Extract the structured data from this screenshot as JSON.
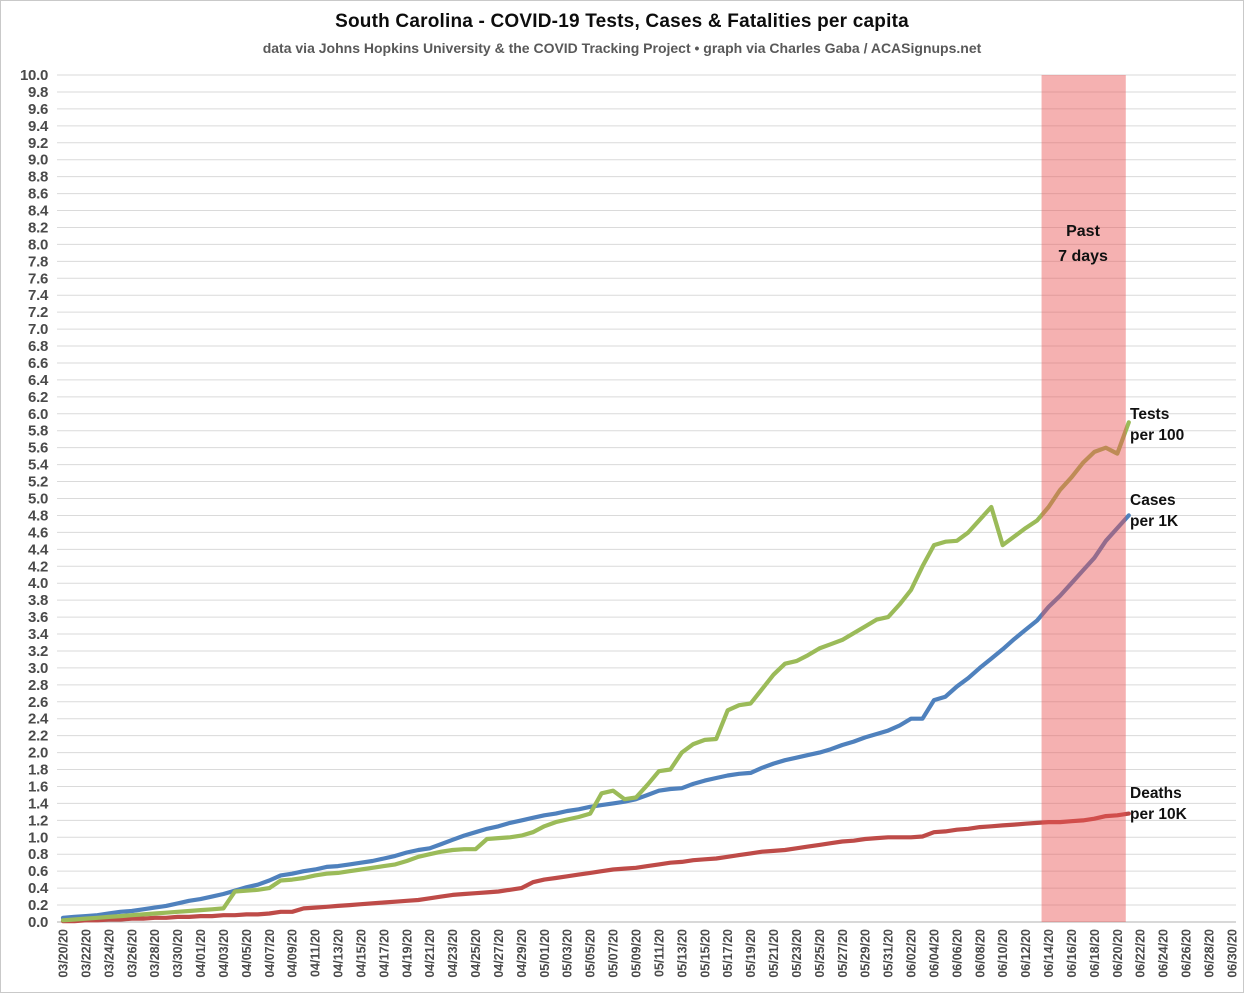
{
  "header": {
    "title": "South Carolina - COVID-19 Tests, Cases & Fatalities per capita",
    "subtitle": "data via Johns Hopkins University & the COVID Tracking Project • graph via Charles Gaba / ACASignups.net"
  },
  "annotations": {
    "past7_line1": "Past",
    "past7_line2": "7 days"
  },
  "series_labels": {
    "tests_line1": "Tests",
    "tests_line2": "per 100",
    "cases_line1": "Cases",
    "cases_line2": "per 1K",
    "deaths_line1": "Deaths",
    "deaths_line2": "per 10K"
  },
  "colors": {
    "tests": "#9bbb59",
    "cases": "#4f81bd",
    "deaths": "#be4b48",
    "band": "#e85151",
    "gridline": "#dadada",
    "axis_line": "#b0b0b0",
    "tick_text": "#4a4a4a"
  },
  "chart_data": {
    "type": "line",
    "title": "South Carolina - COVID-19 Tests, Cases & Fatalities per capita",
    "subtitle": "data via Johns Hopkins University & the COVID Tracking Project • graph via Charles Gaba / ACASignups.net",
    "xlabel": "",
    "ylabel": "",
    "ylim": [
      0,
      10
    ],
    "y_tick_step": 0.2,
    "grid": "horizontal",
    "legend_position": "right-of-line-endpoints",
    "x_start_date": "03/20/20",
    "x_end_date": "06/30/20",
    "x_tick_every_days": 2,
    "x_tick_labels": [
      "03/20/20",
      "03/22/20",
      "03/24/20",
      "03/26/20",
      "03/28/20",
      "03/30/20",
      "04/01/20",
      "04/03/20",
      "04/05/20",
      "04/07/20",
      "04/09/20",
      "04/11/20",
      "04/13/20",
      "04/15/20",
      "04/17/20",
      "04/19/20",
      "04/21/20",
      "04/23/20",
      "04/25/20",
      "04/27/20",
      "04/29/20",
      "05/01/20",
      "05/03/20",
      "05/05/20",
      "05/07/20",
      "05/09/20",
      "05/11/20",
      "05/13/20",
      "05/15/20",
      "05/17/20",
      "05/19/20",
      "05/21/20",
      "05/23/20",
      "05/25/20",
      "05/27/20",
      "05/29/20",
      "05/31/20",
      "06/02/20",
      "06/04/20",
      "06/06/20",
      "06/08/20",
      "06/10/20",
      "06/12/20",
      "06/14/20",
      "06/16/20",
      "06/18/20",
      "06/20/20",
      "06/22/20",
      "06/24/20",
      "06/26/20",
      "06/28/20",
      "06/30/20"
    ],
    "y_tick_labels": [
      "0.0",
      "0.2",
      "0.4",
      "0.6",
      "0.8",
      "1.0",
      "1.2",
      "1.4",
      "1.6",
      "1.8",
      "2.0",
      "2.2",
      "2.4",
      "2.6",
      "2.8",
      "3.0",
      "3.2",
      "3.4",
      "3.6",
      "3.8",
      "4.0",
      "4.2",
      "4.4",
      "4.6",
      "4.8",
      "5.0",
      "5.2",
      "5.4",
      "5.6",
      "5.8",
      "6.0",
      "6.2",
      "6.4",
      "6.6",
      "6.8",
      "7.0",
      "7.2",
      "7.4",
      "7.6",
      "7.8",
      "8.0",
      "8.2",
      "8.4",
      "8.6",
      "8.8",
      "9.0",
      "9.2",
      "9.4",
      "9.6",
      "9.8",
      "10.0"
    ],
    "highlight_band": {
      "label": "Past 7 days",
      "start_date": "06/14/20",
      "end_date": "06/21/20",
      "color": "#e85151",
      "opacity": 0.45
    },
    "series": [
      {
        "name": "Cases per 1K",
        "slug": "cases",
        "color": "#4f81bd",
        "start_date": "03/20/20",
        "end_date": "06/21/20",
        "values": [
          0.05,
          0.06,
          0.07,
          0.08,
          0.1,
          0.12,
          0.13,
          0.15,
          0.17,
          0.19,
          0.22,
          0.25,
          0.27,
          0.3,
          0.33,
          0.37,
          0.41,
          0.44,
          0.49,
          0.55,
          0.57,
          0.6,
          0.62,
          0.65,
          0.66,
          0.68,
          0.7,
          0.72,
          0.75,
          0.78,
          0.82,
          0.85,
          0.87,
          0.92,
          0.97,
          1.02,
          1.06,
          1.1,
          1.13,
          1.17,
          1.2,
          1.23,
          1.26,
          1.28,
          1.31,
          1.33,
          1.36,
          1.38,
          1.4,
          1.42,
          1.45,
          1.5,
          1.55,
          1.57,
          1.58,
          1.63,
          1.67,
          1.7,
          1.73,
          1.75,
          1.76,
          1.82,
          1.87,
          1.91,
          1.94,
          1.97,
          2.0,
          2.04,
          2.09,
          2.13,
          2.18,
          2.22,
          2.26,
          2.32,
          2.4,
          2.4,
          2.62,
          2.66,
          2.78,
          2.88,
          3.0,
          3.11,
          3.22,
          3.34,
          3.45,
          3.56,
          3.72,
          3.85,
          4.0,
          4.15,
          4.3,
          4.5,
          4.65,
          4.8
        ]
      },
      {
        "name": "Deaths per 10K",
        "slug": "deaths",
        "color": "#be4b48",
        "start_date": "03/20/20",
        "end_date": "06/21/20",
        "values": [
          0.01,
          0.01,
          0.02,
          0.02,
          0.03,
          0.03,
          0.04,
          0.04,
          0.05,
          0.05,
          0.06,
          0.06,
          0.07,
          0.07,
          0.08,
          0.08,
          0.09,
          0.09,
          0.1,
          0.12,
          0.12,
          0.16,
          0.17,
          0.18,
          0.19,
          0.2,
          0.21,
          0.22,
          0.23,
          0.24,
          0.25,
          0.26,
          0.28,
          0.3,
          0.32,
          0.33,
          0.34,
          0.35,
          0.36,
          0.38,
          0.4,
          0.47,
          0.5,
          0.52,
          0.54,
          0.56,
          0.58,
          0.6,
          0.62,
          0.63,
          0.64,
          0.66,
          0.68,
          0.7,
          0.71,
          0.73,
          0.74,
          0.75,
          0.77,
          0.79,
          0.81,
          0.83,
          0.84,
          0.85,
          0.87,
          0.89,
          0.91,
          0.93,
          0.95,
          0.96,
          0.98,
          0.99,
          1.0,
          1.0,
          1.0,
          1.01,
          1.06,
          1.07,
          1.09,
          1.1,
          1.12,
          1.13,
          1.14,
          1.15,
          1.16,
          1.17,
          1.18,
          1.18,
          1.19,
          1.2,
          1.22,
          1.25,
          1.26,
          1.28
        ]
      },
      {
        "name": "Tests per 100",
        "slug": "tests",
        "color": "#9bbb59",
        "start_date": "03/20/20",
        "end_date": "06/21/20",
        "values": [
          0.02,
          0.03,
          0.04,
          0.05,
          0.06,
          0.07,
          0.08,
          0.09,
          0.1,
          0.11,
          0.12,
          0.13,
          0.14,
          0.15,
          0.16,
          0.36,
          0.37,
          0.38,
          0.4,
          0.49,
          0.5,
          0.52,
          0.55,
          0.57,
          0.58,
          0.6,
          0.62,
          0.64,
          0.66,
          0.68,
          0.72,
          0.77,
          0.8,
          0.83,
          0.85,
          0.86,
          0.86,
          0.98,
          0.99,
          1.0,
          1.02,
          1.06,
          1.13,
          1.18,
          1.21,
          1.24,
          1.28,
          1.52,
          1.55,
          1.45,
          1.47,
          1.62,
          1.78,
          1.8,
          2.0,
          2.1,
          2.15,
          2.16,
          2.5,
          2.56,
          2.58,
          2.75,
          2.92,
          3.05,
          3.08,
          3.15,
          3.23,
          3.28,
          3.33,
          3.41,
          3.49,
          3.57,
          3.6,
          3.75,
          3.92,
          4.2,
          4.45,
          4.49,
          4.5,
          4.6,
          4.75,
          4.9,
          4.45,
          4.55,
          4.65,
          4.74,
          4.9,
          5.1,
          5.25,
          5.42,
          5.55,
          5.6,
          5.53,
          5.9
        ]
      }
    ]
  }
}
